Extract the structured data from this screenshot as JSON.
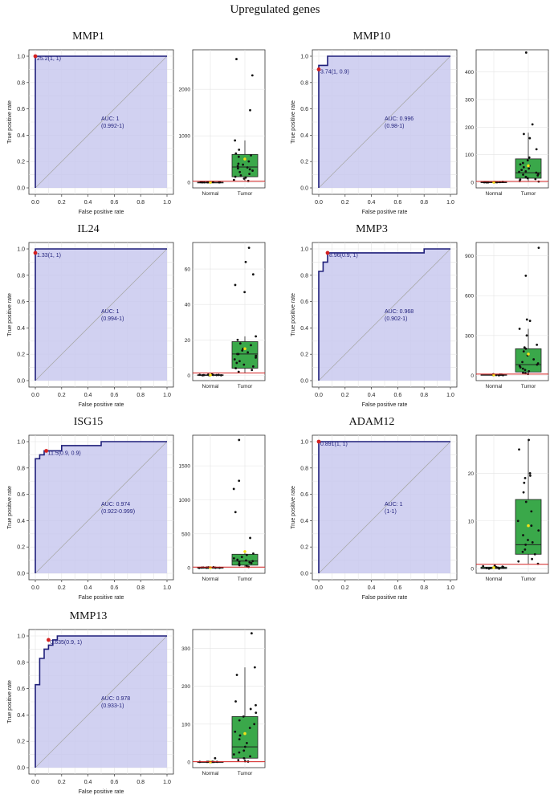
{
  "figure_title": "Upregulated genes",
  "chart_data": [
    {
      "gene": "MMP1",
      "roc": {
        "type": "line",
        "xlabel": "False positive rate",
        "ylabel": "True positive rate",
        "xlim": [
          0,
          1
        ],
        "ylim": [
          0,
          1
        ],
        "ticks": [
          "0.0",
          "0.2",
          "0.4",
          "0.6",
          "0.8",
          "1.0"
        ],
        "points": [
          [
            0,
            0
          ],
          [
            0,
            1
          ],
          [
            1,
            1
          ]
        ],
        "cutoff_point": [
          0,
          1
        ],
        "cutoff_label": "25.2(1, 1)",
        "auc_label": "AUC: 1",
        "ci_label": "(0.992-1)"
      },
      "box": {
        "type": "box",
        "categories": [
          "Normal",
          "Tumor"
        ],
        "yticks": [
          0,
          1000,
          2000
        ],
        "ylim": [
          -120,
          2850
        ],
        "normal": {
          "q1": 0,
          "median": 0,
          "q3": 0,
          "low": 0,
          "high": 0,
          "mean": 0,
          "points": [
            0,
            2,
            5,
            1,
            3,
            0,
            4,
            2,
            6,
            1
          ]
        },
        "tumor": {
          "q1": 120,
          "median": 330,
          "q3": 600,
          "low": 20,
          "high": 900,
          "mean": 500,
          "points": [
            2650,
            2300,
            1550,
            900,
            700,
            620,
            580,
            550,
            500,
            450,
            400,
            380,
            350,
            320,
            300,
            280,
            250,
            220,
            180,
            150,
            120,
            100,
            80,
            50,
            30
          ]
        },
        "cutoff_line": 25.2
      }
    },
    {
      "gene": "MMP10",
      "roc": {
        "type": "line",
        "xlabel": "False positive rate",
        "ylabel": "True positive rate",
        "xlim": [
          0,
          1
        ],
        "ylim": [
          0,
          1
        ],
        "ticks": [
          "0.0",
          "0.2",
          "0.4",
          "0.6",
          "0.8",
          "1.0"
        ],
        "points": [
          [
            0,
            0
          ],
          [
            0,
            0.93
          ],
          [
            0.067,
            0.93
          ],
          [
            0.067,
            1
          ],
          [
            1,
            1
          ]
        ],
        "cutoff_point": [
          0,
          0.9
        ],
        "cutoff_label": "3.74(1, 0.9)",
        "auc_label": "AUC: 0.996",
        "ci_label": "(0.98-1)"
      },
      "box": {
        "type": "box",
        "categories": [
          "Normal",
          "Tumor"
        ],
        "yticks": [
          0,
          100,
          200,
          300,
          400
        ],
        "ylim": [
          -20,
          480
        ],
        "normal": {
          "q1": 0,
          "median": 0,
          "q3": 1,
          "low": 0,
          "high": 2,
          "mean": 0.5,
          "points": [
            0,
            1,
            0.5,
            2,
            0,
            1,
            0.5,
            1.5,
            0,
            1
          ]
        },
        "tumor": {
          "q1": 15,
          "median": 35,
          "q3": 85,
          "low": 2,
          "high": 180,
          "mean": 60,
          "points": [
            470,
            210,
            175,
            160,
            120,
            90,
            80,
            70,
            65,
            60,
            55,
            50,
            45,
            40,
            38,
            35,
            30,
            28,
            25,
            20,
            15,
            12,
            10,
            5,
            3
          ]
        },
        "cutoff_line": 3.74
      }
    },
    {
      "gene": "IL24",
      "roc": {
        "type": "line",
        "xlabel": "False positive rate",
        "ylabel": "True positive rate",
        "xlim": [
          0,
          1
        ],
        "ylim": [
          0,
          1
        ],
        "ticks": [
          "0.0",
          "0.2",
          "0.4",
          "0.6",
          "0.8",
          "1.0"
        ],
        "points": [
          [
            0,
            0
          ],
          [
            0,
            1
          ],
          [
            1,
            1
          ]
        ],
        "cutoff_point": [
          0,
          0.97
        ],
        "cutoff_label": "1.33(1, 1)",
        "auc_label": "AUC: 1",
        "ci_label": "(0.994-1)"
      },
      "box": {
        "type": "box",
        "categories": [
          "Normal",
          "Tumor"
        ],
        "yticks": [
          0,
          20,
          40,
          60
        ],
        "ylim": [
          -3,
          75
        ],
        "normal": {
          "q1": 0,
          "median": 0,
          "q3": 0.3,
          "low": 0,
          "high": 0.5,
          "mean": 0.1,
          "points": [
            0,
            0.2,
            0.1,
            0.4,
            0,
            0.3,
            0.1,
            0.5,
            0.2,
            0
          ]
        },
        "tumor": {
          "q1": 4,
          "median": 12,
          "q3": 19,
          "low": 1.5,
          "high": 22,
          "mean": 15,
          "points": [
            72,
            64,
            57,
            51,
            47,
            22,
            20,
            18,
            17,
            15,
            14,
            13,
            12,
            12,
            11,
            10,
            9,
            8,
            7,
            6,
            5,
            4,
            3,
            2
          ]
        },
        "cutoff_line": 1.33
      }
    },
    {
      "gene": "MMP3",
      "roc": {
        "type": "line",
        "xlabel": "False positive rate",
        "ylabel": "True positive rate",
        "xlim": [
          0,
          1
        ],
        "ylim": [
          0,
          1
        ],
        "ticks": [
          "0.0",
          "0.2",
          "0.4",
          "0.6",
          "0.8",
          "1.0"
        ],
        "points": [
          [
            0,
            0
          ],
          [
            0,
            0.83
          ],
          [
            0.033,
            0.83
          ],
          [
            0.033,
            0.9
          ],
          [
            0.067,
            0.9
          ],
          [
            0.067,
            0.97
          ],
          [
            0.8,
            0.97
          ],
          [
            0.8,
            1
          ],
          [
            1,
            1
          ]
        ],
        "cutoff_point": [
          0.067,
          0.97
        ],
        "cutoff_label": "8.96(0.9, 1)",
        "auc_label": "AUC: 0.968",
        "ci_label": "(0.902-1)"
      },
      "box": {
        "type": "box",
        "categories": [
          "Normal",
          "Tumor"
        ],
        "yticks": [
          0,
          300,
          600,
          900
        ],
        "ylim": [
          -40,
          1000
        ],
        "normal": {
          "q1": 0,
          "median": 2,
          "q3": 5,
          "low": 0,
          "high": 9,
          "mean": 3,
          "points": [
            0,
            2,
            4,
            1,
            6,
            3,
            8,
            2,
            1,
            5
          ]
        },
        "tumor": {
          "q1": 25,
          "median": 80,
          "q3": 200,
          "low": 9,
          "high": 350,
          "mean": 160,
          "points": [
            960,
            750,
            420,
            410,
            350,
            300,
            230,
            210,
            200,
            180,
            150,
            120,
            100,
            90,
            80,
            70,
            60,
            50,
            40,
            30,
            20,
            15,
            10
          ]
        },
        "cutoff_line": 8.96
      }
    },
    {
      "gene": "ISG15",
      "roc": {
        "type": "line",
        "xlabel": "False positive rate",
        "ylabel": "True positive rate",
        "xlim": [
          0,
          1
        ],
        "ylim": [
          0,
          1
        ],
        "ticks": [
          "0.0",
          "0.2",
          "0.4",
          "0.6",
          "0.8",
          "1.0"
        ],
        "points": [
          [
            0,
            0
          ],
          [
            0,
            0.87
          ],
          [
            0.033,
            0.87
          ],
          [
            0.033,
            0.9
          ],
          [
            0.067,
            0.9
          ],
          [
            0.067,
            0.93
          ],
          [
            0.2,
            0.93
          ],
          [
            0.2,
            0.97
          ],
          [
            0.5,
            0.97
          ],
          [
            0.5,
            1
          ],
          [
            1,
            1
          ]
        ],
        "cutoff_point": [
          0.083,
          0.93
        ],
        "cutoff_label": "11.5(0.9, 0.9)",
        "auc_label": "AUC: 0.974",
        "ci_label": "(0.922-0.999)"
      },
      "box": {
        "type": "box",
        "categories": [
          "Normal",
          "Tumor"
        ],
        "yticks": [
          0,
          500,
          1000,
          1500
        ],
        "ylim": [
          -80,
          1950
        ],
        "normal": {
          "q1": 0,
          "median": 2,
          "q3": 5,
          "low": 0,
          "high": 10,
          "mean": 3,
          "points": [
            0,
            2,
            5,
            8,
            3,
            1,
            6,
            10,
            4,
            2
          ]
        },
        "tumor": {
          "q1": 40,
          "median": 100,
          "q3": 200,
          "low": 15,
          "high": 220,
          "mean": 240,
          "points": [
            1880,
            1280,
            1160,
            820,
            440,
            210,
            190,
            160,
            140,
            120,
            110,
            100,
            90,
            80,
            70,
            60,
            50,
            40,
            30,
            20,
            15
          ]
        },
        "cutoff_line": 11.5
      }
    },
    {
      "gene": "ADAM12",
      "roc": {
        "type": "line",
        "xlabel": "False positive rate",
        "ylabel": "True positive rate",
        "xlim": [
          0,
          1
        ],
        "ylim": [
          0,
          1
        ],
        "ticks": [
          "0.0",
          "0.2",
          "0.4",
          "0.6",
          "0.8",
          "1.0"
        ],
        "points": [
          [
            0,
            0
          ],
          [
            0,
            1
          ],
          [
            1,
            1
          ]
        ],
        "cutoff_point": [
          0,
          1
        ],
        "cutoff_label": "0.891(1, 1)",
        "auc_label": "AUC: 1",
        "ci_label": "(1-1)"
      },
      "box": {
        "type": "box",
        "categories": [
          "Normal",
          "Tumor"
        ],
        "yticks": [
          0,
          10,
          20
        ],
        "ylim": [
          -1,
          28
        ],
        "normal": {
          "q1": 0,
          "median": 0.1,
          "q3": 0.3,
          "low": 0,
          "high": 0.6,
          "mean": 0.2,
          "points": [
            0,
            0.1,
            0.2,
            0.3,
            0.5,
            0.1,
            0.4,
            0.2,
            0,
            0.3,
            0.6,
            0.2
          ]
        },
        "tumor": {
          "q1": 3,
          "median": 5,
          "q3": 14.5,
          "low": 1,
          "high": 27,
          "mean": 9,
          "points": [
            27,
            25,
            20,
            19.5,
            19,
            18,
            16,
            14,
            12,
            10,
            9,
            8,
            7,
            6,
            5.5,
            5,
            4,
            3.5,
            3,
            2,
            1.5,
            1
          ]
        },
        "cutoff_line": 0.891
      }
    },
    {
      "gene": "MMP13",
      "roc": {
        "type": "line",
        "xlabel": "False positive rate",
        "ylabel": "True positive rate",
        "xlim": [
          0,
          1
        ],
        "ylim": [
          0,
          1
        ],
        "ticks": [
          "0.0",
          "0.2",
          "0.4",
          "0.6",
          "0.8",
          "1.0"
        ],
        "points": [
          [
            0,
            0
          ],
          [
            0,
            0.63
          ],
          [
            0.033,
            0.63
          ],
          [
            0.033,
            0.83
          ],
          [
            0.067,
            0.83
          ],
          [
            0.067,
            0.9
          ],
          [
            0.1,
            0.9
          ],
          [
            0.1,
            0.93
          ],
          [
            0.133,
            0.93
          ],
          [
            0.133,
            0.97
          ],
          [
            0.167,
            0.97
          ],
          [
            0.167,
            1
          ],
          [
            1,
            1
          ]
        ],
        "cutoff_point": [
          0.1,
          0.97
        ],
        "cutoff_label": "0.635(0.9, 1)",
        "auc_label": "AUC: 0.978",
        "ci_label": "(0.933-1)"
      },
      "box": {
        "type": "box",
        "categories": [
          "Normal",
          "Tumor"
        ],
        "yticks": [
          0,
          100,
          200,
          300
        ],
        "ylim": [
          -15,
          350
        ],
        "normal": {
          "q1": 0,
          "median": 0,
          "q3": 0.4,
          "low": 0,
          "high": 0.6,
          "mean": 0.1,
          "points": [
            0,
            0.2,
            0.1,
            0.4,
            0,
            0.3,
            0.5,
            10,
            0.2,
            0
          ]
        },
        "tumor": {
          "q1": 10,
          "median": 40,
          "q3": 120,
          "low": 1,
          "high": 250,
          "mean": 75,
          "points": [
            340,
            250,
            230,
            160,
            150,
            140,
            130,
            120,
            110,
            100,
            90,
            80,
            70,
            60,
            50,
            40,
            30,
            25,
            20,
            15,
            10,
            5,
            2,
            1
          ]
        },
        "cutoff_line": 0.635
      }
    }
  ]
}
